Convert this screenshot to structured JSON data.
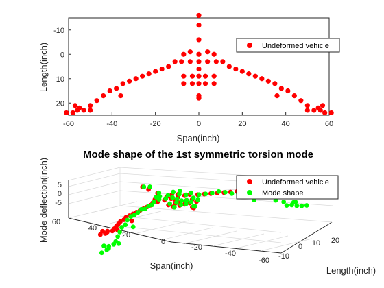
{
  "chart_data": [
    {
      "type": "scatter",
      "title": "",
      "xlabel": "Span(inch)",
      "ylabel": "Length(inch)",
      "xlim": [
        -60,
        60
      ],
      "ylim": [
        -15,
        25
      ],
      "y_reversed": true,
      "xticks": [
        "-60",
        "-40",
        "-20",
        "0",
        "20",
        "40",
        "60"
      ],
      "yticks": [
        "-10",
        "0",
        "10",
        "20"
      ],
      "legend": {
        "position": "top-right",
        "entries": [
          "Undeformed vehicle"
        ]
      },
      "colors": {
        "undeformed": "#ff0000"
      },
      "series": [
        {
          "name": "Undeformed vehicle",
          "points": [
            [
              0,
              -16
            ],
            [
              0,
              -12
            ],
            [
              0,
              -6
            ],
            [
              0,
              0
            ],
            [
              0,
              3
            ],
            [
              0,
              6
            ],
            [
              0,
              9
            ],
            [
              0,
              12
            ],
            [
              0,
              17
            ],
            [
              0,
              18
            ],
            [
              -7,
              0
            ],
            [
              -4,
              -1
            ],
            [
              -8,
              3
            ],
            [
              -4,
              3
            ],
            [
              -7,
              9
            ],
            [
              -3,
              9
            ],
            [
              -7,
              12
            ],
            [
              -3,
              12
            ],
            [
              7,
              0
            ],
            [
              4,
              -1
            ],
            [
              8,
              3
            ],
            [
              4,
              3
            ],
            [
              7,
              9
            ],
            [
              3,
              9
            ],
            [
              7,
              12
            ],
            [
              3,
              12
            ],
            [
              -11,
              3
            ],
            [
              -14,
              5
            ],
            [
              -17,
              6
            ],
            [
              -20,
              7
            ],
            [
              -23,
              8
            ],
            [
              -26,
              9
            ],
            [
              -29,
              10
            ],
            [
              -32,
              11
            ],
            [
              -35,
              12
            ],
            [
              -38,
              14
            ],
            [
              -41,
              15
            ],
            [
              -44,
              17
            ],
            [
              -47,
              19
            ],
            [
              -50,
              21
            ],
            [
              -53,
              23
            ],
            [
              -55,
              22
            ],
            [
              -57,
              21
            ],
            [
              -56,
              23
            ],
            [
              -58,
              24
            ],
            [
              -61,
              24
            ],
            [
              -36,
              17
            ],
            [
              -50,
              23
            ],
            [
              11,
              3
            ],
            [
              14,
              5
            ],
            [
              17,
              6
            ],
            [
              20,
              7
            ],
            [
              23,
              8
            ],
            [
              26,
              9
            ],
            [
              29,
              10
            ],
            [
              32,
              11
            ],
            [
              35,
              12
            ],
            [
              38,
              14
            ],
            [
              41,
              15
            ],
            [
              44,
              17
            ],
            [
              47,
              19
            ],
            [
              50,
              21
            ],
            [
              53,
              23
            ],
            [
              55,
              22
            ],
            [
              57,
              21
            ],
            [
              56,
              23
            ],
            [
              58,
              24
            ],
            [
              61,
              24
            ],
            [
              36,
              17
            ],
            [
              50,
              23
            ]
          ]
        }
      ]
    },
    {
      "type": "scatter",
      "title": "Mode shape of the 1st symmetric torsion mode",
      "xlabel": "Span(inch)",
      "ylabel": "Mode deflection(inch)",
      "zlabel": "Length(inch)",
      "xticks": [
        "60",
        "40",
        "20",
        "0",
        "-20",
        "-40",
        "-60"
      ],
      "yticks": [
        "-10",
        "0",
        "10",
        "20"
      ],
      "zticks": [
        "5",
        "0",
        "-5"
      ],
      "legend": {
        "position": "top-right",
        "entries": [
          "Undeformed vehicle",
          "Mode shape"
        ]
      },
      "colors": {
        "undeformed": "#ff0000",
        "mode": "#00ff00"
      },
      "series": [
        {
          "name": "Undeformed vehicle"
        },
        {
          "name": "Mode shape"
        }
      ]
    }
  ]
}
